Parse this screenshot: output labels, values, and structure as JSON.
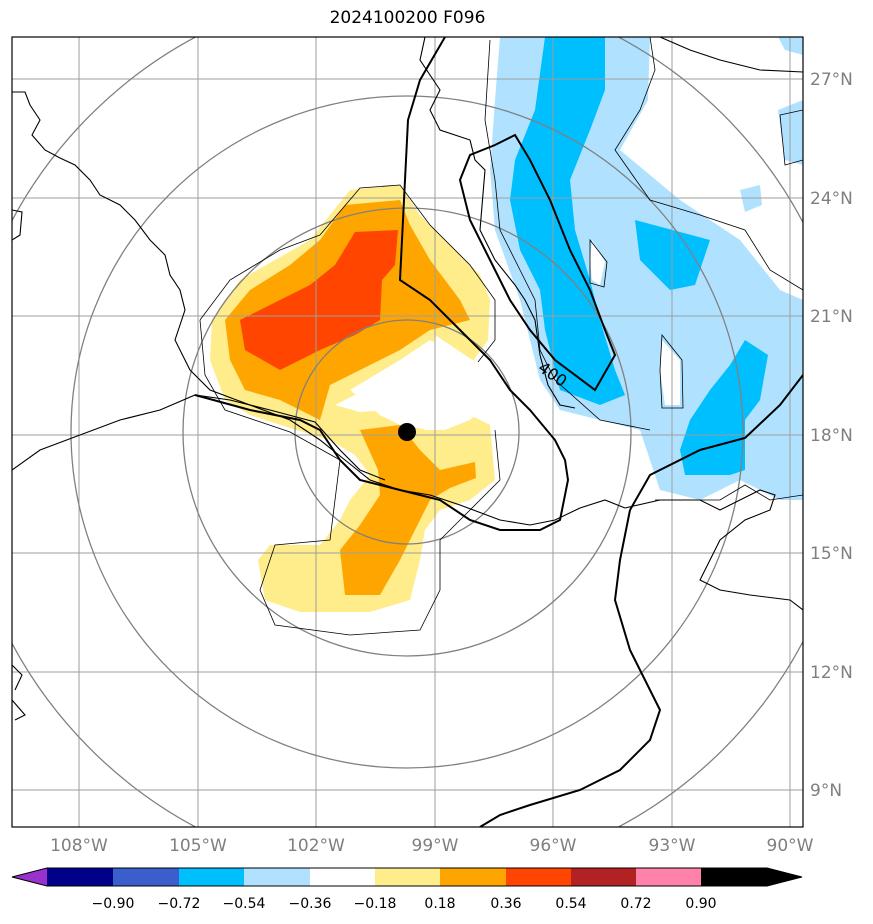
{
  "title": "2024100200 F096",
  "map": {
    "lat_ticks": [
      "27°N",
      "24°N",
      "21°N",
      "18°N",
      "15°N",
      "12°N",
      "9°N"
    ],
    "lon_ticks": [
      "108°W",
      "105°W",
      "102°W",
      "99°W",
      "96°W",
      "93°W",
      "90°W"
    ],
    "contour_label": "400",
    "center_marker": "storm-center-dot"
  },
  "colorbar": {
    "labels": [
      "−0.90",
      "−0.72",
      "−0.54",
      "−0.36",
      "−0.18",
      "0.18",
      "0.36",
      "0.54",
      "0.72",
      "0.90"
    ],
    "colors": [
      "#9932cc",
      "#00008b",
      "#3a5fcd",
      "#00bfff",
      "#b0e2ff",
      "#ffffff",
      "#ffec8b",
      "#ffa500",
      "#ff4500",
      "#b22222",
      "#ff82ab"
    ]
  }
}
